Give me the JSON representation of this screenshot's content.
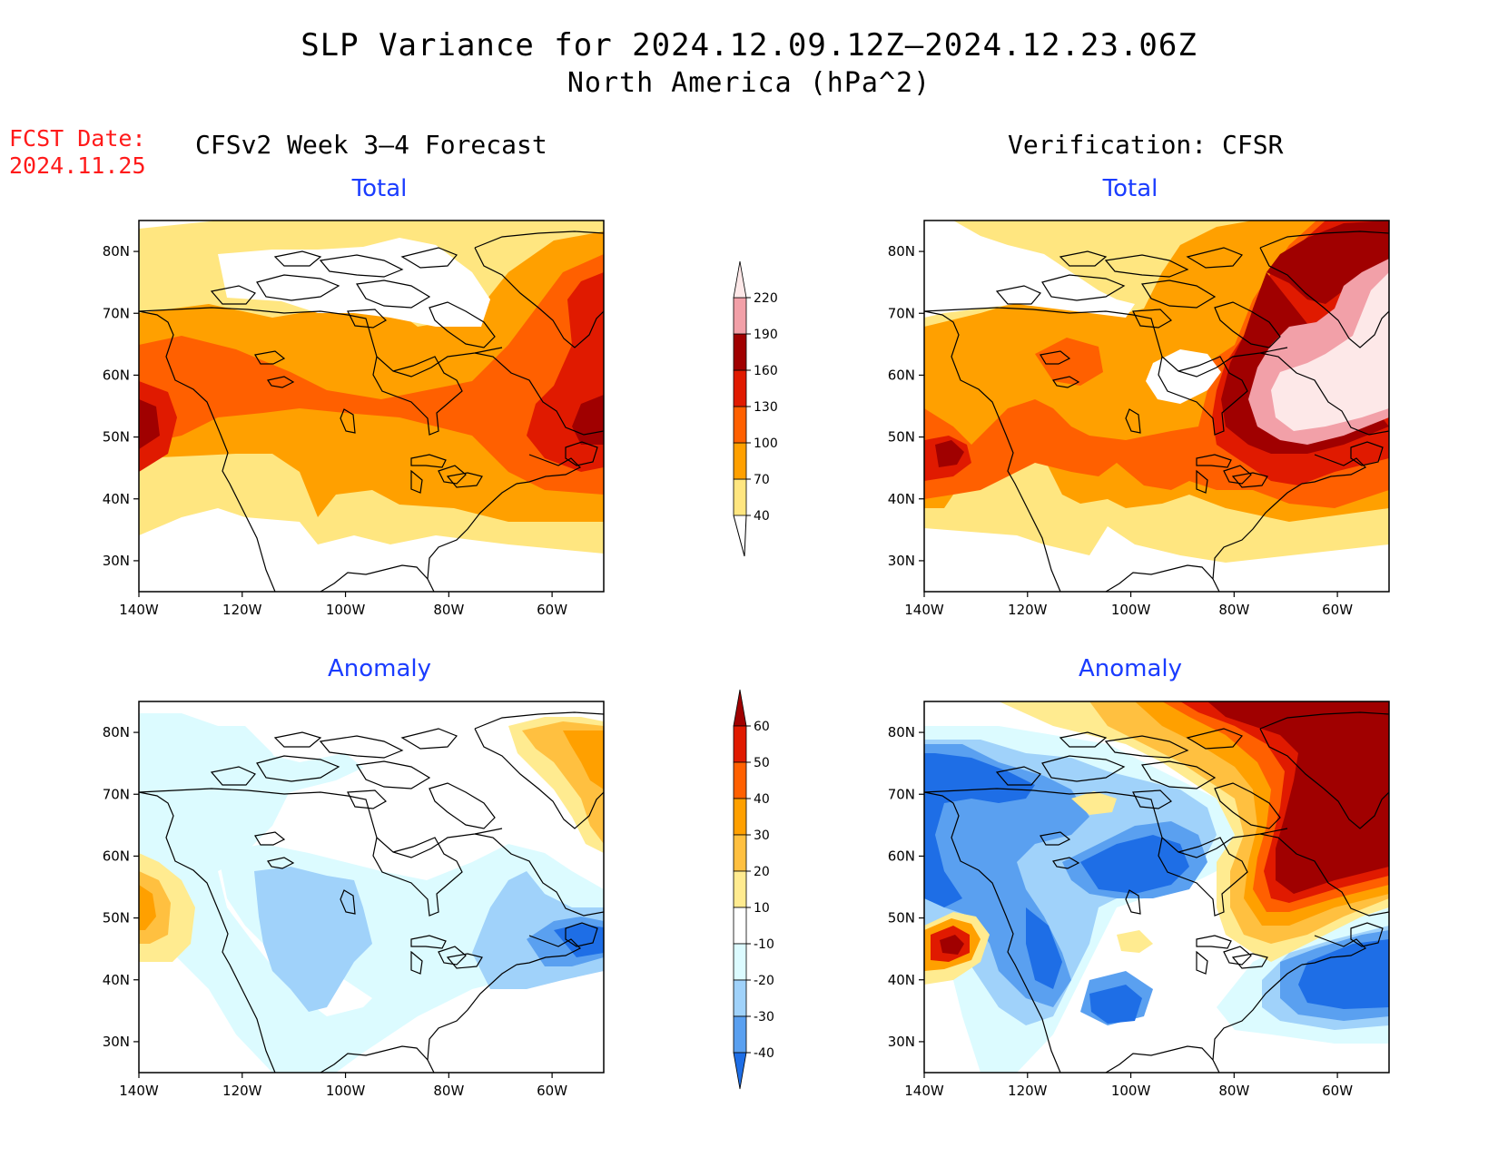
{
  "title": "SLP Variance for 2024.12.09.12Z–2024.12.23.06Z",
  "subtitle": "North America (hPa^2)",
  "fcst_date_label": "FCST Date:",
  "fcst_date_value": "2024.11.25",
  "left_header": "CFSv2 Week 3–4 Forecast",
  "right_header": "Verification: CFSR",
  "panels": {
    "fc_total": {
      "title": "Total"
    },
    "ver_total": {
      "title": "Total"
    },
    "fc_anom": {
      "title": "Anomaly"
    },
    "ver_anom": {
      "title": "Anomaly"
    }
  },
  "axes": {
    "lon_ticks": [
      "140W",
      "120W",
      "100W",
      "80W",
      "60W"
    ],
    "lat_ticks": [
      "80N",
      "70N",
      "60N",
      "50N",
      "40N",
      "30N"
    ],
    "lon_range": [
      -140,
      -50
    ],
    "lat_range": [
      25,
      85
    ]
  },
  "colorbars": {
    "total": {
      "levels": [
        "40",
        "70",
        "100",
        "130",
        "160",
        "190",
        "220"
      ],
      "colors": [
        "#ffe680",
        "#ffa000",
        "#ff6000",
        "#e01a00",
        "#a00000",
        "#f2a0a8",
        "#fde8e8"
      ]
    },
    "anomaly": {
      "levels": [
        "60",
        "50",
        "40",
        "30",
        "20",
        "10",
        "-10",
        "-20",
        "-30",
        "-40"
      ],
      "colors": [
        "#a00000",
        "#e01a00",
        "#ff6000",
        "#ffa000",
        "#ffc040",
        "#ffeb90",
        "#ffffff",
        "#dcfbff",
        "#a0d2fa",
        "#5aa0f0",
        "#1e6ee6"
      ]
    }
  }
}
